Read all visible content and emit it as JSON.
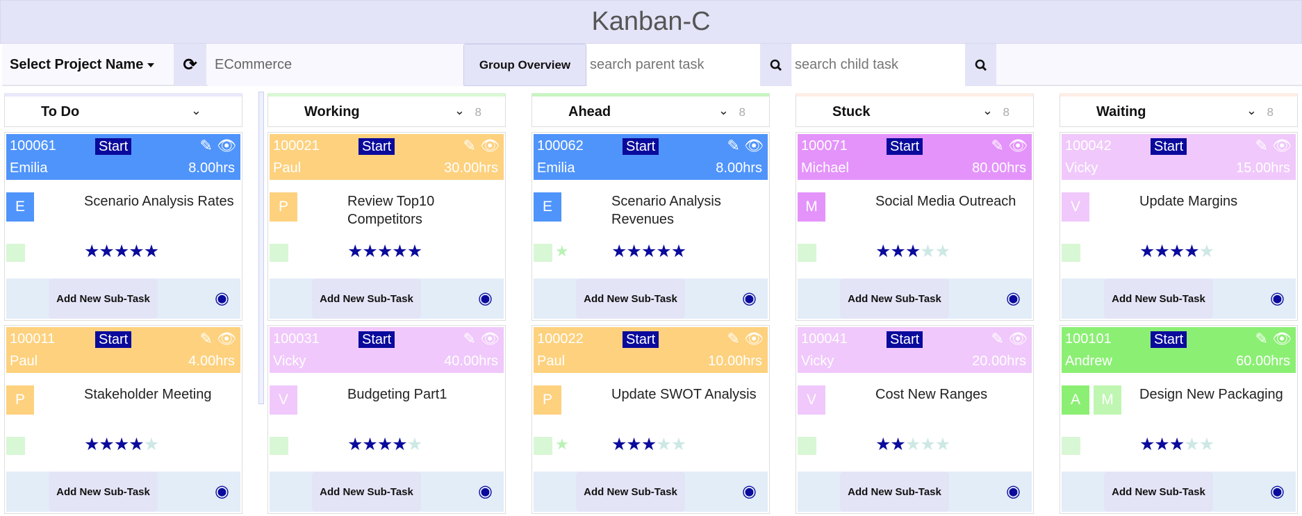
{
  "app": {
    "title": "Kanban-C"
  },
  "toolbar": {
    "select_project": "Select Project Name",
    "project_value": "ECommerce",
    "group_overview": "Group Overview",
    "search_parent_placeholder": "search parent task",
    "search_child_placeholder": "search child task"
  },
  "colors": {
    "blue": "#4f94fb",
    "orange": "#fdd17e",
    "magenta": "#e493fb",
    "pink": "#f0c8fb",
    "green": "#8bef74",
    "start_badge": "#0a0a9c"
  },
  "card_labels": {
    "start": "Start",
    "add_subtask": "Add New Sub-Task"
  },
  "columns": [
    {
      "title": "To Do",
      "count": "",
      "accent": "#e8e8fa",
      "cards": [
        {
          "id": "100061",
          "owner": "Emilia",
          "hours": "8.00hrs",
          "title": "Scenario Analysis Rates",
          "avatars": [
            "E"
          ],
          "color": "#4f94fb",
          "rating": 5,
          "extra_star": false
        },
        {
          "id": "100011",
          "owner": "Paul",
          "hours": "4.00hrs",
          "title": "Stakeholder Meeting",
          "avatars": [
            "P"
          ],
          "color": "#fdd17e",
          "rating": 4,
          "extra_star": false
        }
      ]
    },
    {
      "title": "Working",
      "count": "8",
      "accent": "#d9f7d4",
      "cards": [
        {
          "id": "100021",
          "owner": "Paul",
          "hours": "30.00hrs",
          "title": "Review Top10 Competitors",
          "avatars": [
            "P"
          ],
          "color": "#fdd17e",
          "rating": 5,
          "extra_star": false
        },
        {
          "id": "100031",
          "owner": "Vicky",
          "hours": "40.00hrs",
          "title": "Budgeting Part1",
          "avatars": [
            "V"
          ],
          "color": "#f0c8fb",
          "rating": 4,
          "extra_star": false
        }
      ]
    },
    {
      "title": "Ahead",
      "count": "8",
      "accent": "#c8f5c2",
      "cards": [
        {
          "id": "100062",
          "owner": "Emilia",
          "hours": "8.00hrs",
          "title": "Scenario Analysis Revenues",
          "avatars": [
            "E"
          ],
          "color": "#4f94fb",
          "rating": 5,
          "extra_star": true
        },
        {
          "id": "100022",
          "owner": "Paul",
          "hours": "10.00hrs",
          "title": "Update SWOT Analysis",
          "avatars": [
            "P"
          ],
          "color": "#fdd17e",
          "rating": 3,
          "extra_star": true
        }
      ]
    },
    {
      "title": "Stuck",
      "count": "8",
      "accent": "#fdeee6",
      "cards": [
        {
          "id": "100071",
          "owner": "Michael",
          "hours": "80.00hrs",
          "title": "Social Media Outreach",
          "avatars": [
            "M"
          ],
          "color": "#e493fb",
          "rating": 3,
          "extra_star": false
        },
        {
          "id": "100041",
          "owner": "Vicky",
          "hours": "20.00hrs",
          "title": "Cost New Ranges",
          "avatars": [
            "V"
          ],
          "color": "#f0c8fb",
          "rating": 2,
          "extra_star": false
        }
      ]
    },
    {
      "title": "Waiting",
      "count": "8",
      "accent": "#fdeee6",
      "cards": [
        {
          "id": "100042",
          "owner": "Vicky",
          "hours": "15.00hrs",
          "title": "Update Margins",
          "avatars": [
            "V"
          ],
          "color": "#f0c8fb",
          "rating": 4,
          "extra_star": false
        },
        {
          "id": "100101",
          "owner": "Andrew",
          "hours": "60.00hrs",
          "title": "Design New Packaging",
          "avatars": [
            "A",
            "M"
          ],
          "color": "#8bef74",
          "rating": 3,
          "extra_star": false
        }
      ]
    }
  ]
}
